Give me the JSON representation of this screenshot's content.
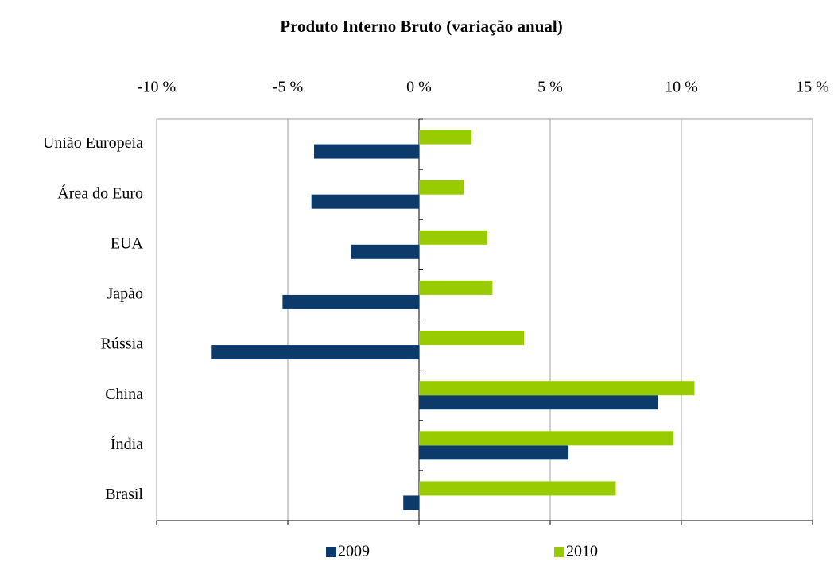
{
  "chart_data": {
    "type": "bar",
    "orientation": "horizontal",
    "title": "Produto Interno Bruto (variação anual)",
    "categories": [
      "União Europeia",
      "Área do Euro",
      "EUA",
      "Japão",
      "Rússia",
      "China",
      "Índia",
      "Brasil"
    ],
    "series": [
      {
        "name": "2009",
        "color": "#0b3a6b",
        "values": [
          -4.0,
          -4.1,
          -2.6,
          -5.2,
          -7.9,
          9.1,
          5.7,
          -0.6
        ]
      },
      {
        "name": "2010",
        "color": "#99cc00",
        "values": [
          2.0,
          1.7,
          2.6,
          2.8,
          4.0,
          10.5,
          9.7,
          7.5
        ]
      }
    ],
    "xlim": [
      -10,
      15
    ],
    "xticks": [
      {
        "value": -10,
        "label": "-10 %"
      },
      {
        "value": -5,
        "label": "-5 %"
      },
      {
        "value": 0,
        "label": "0 %"
      },
      {
        "value": 5,
        "label": "5 %"
      },
      {
        "value": 10,
        "label": "10 %"
      },
      {
        "value": 15,
        "label": "15 %"
      }
    ],
    "grid": true,
    "legend": "bottom"
  }
}
